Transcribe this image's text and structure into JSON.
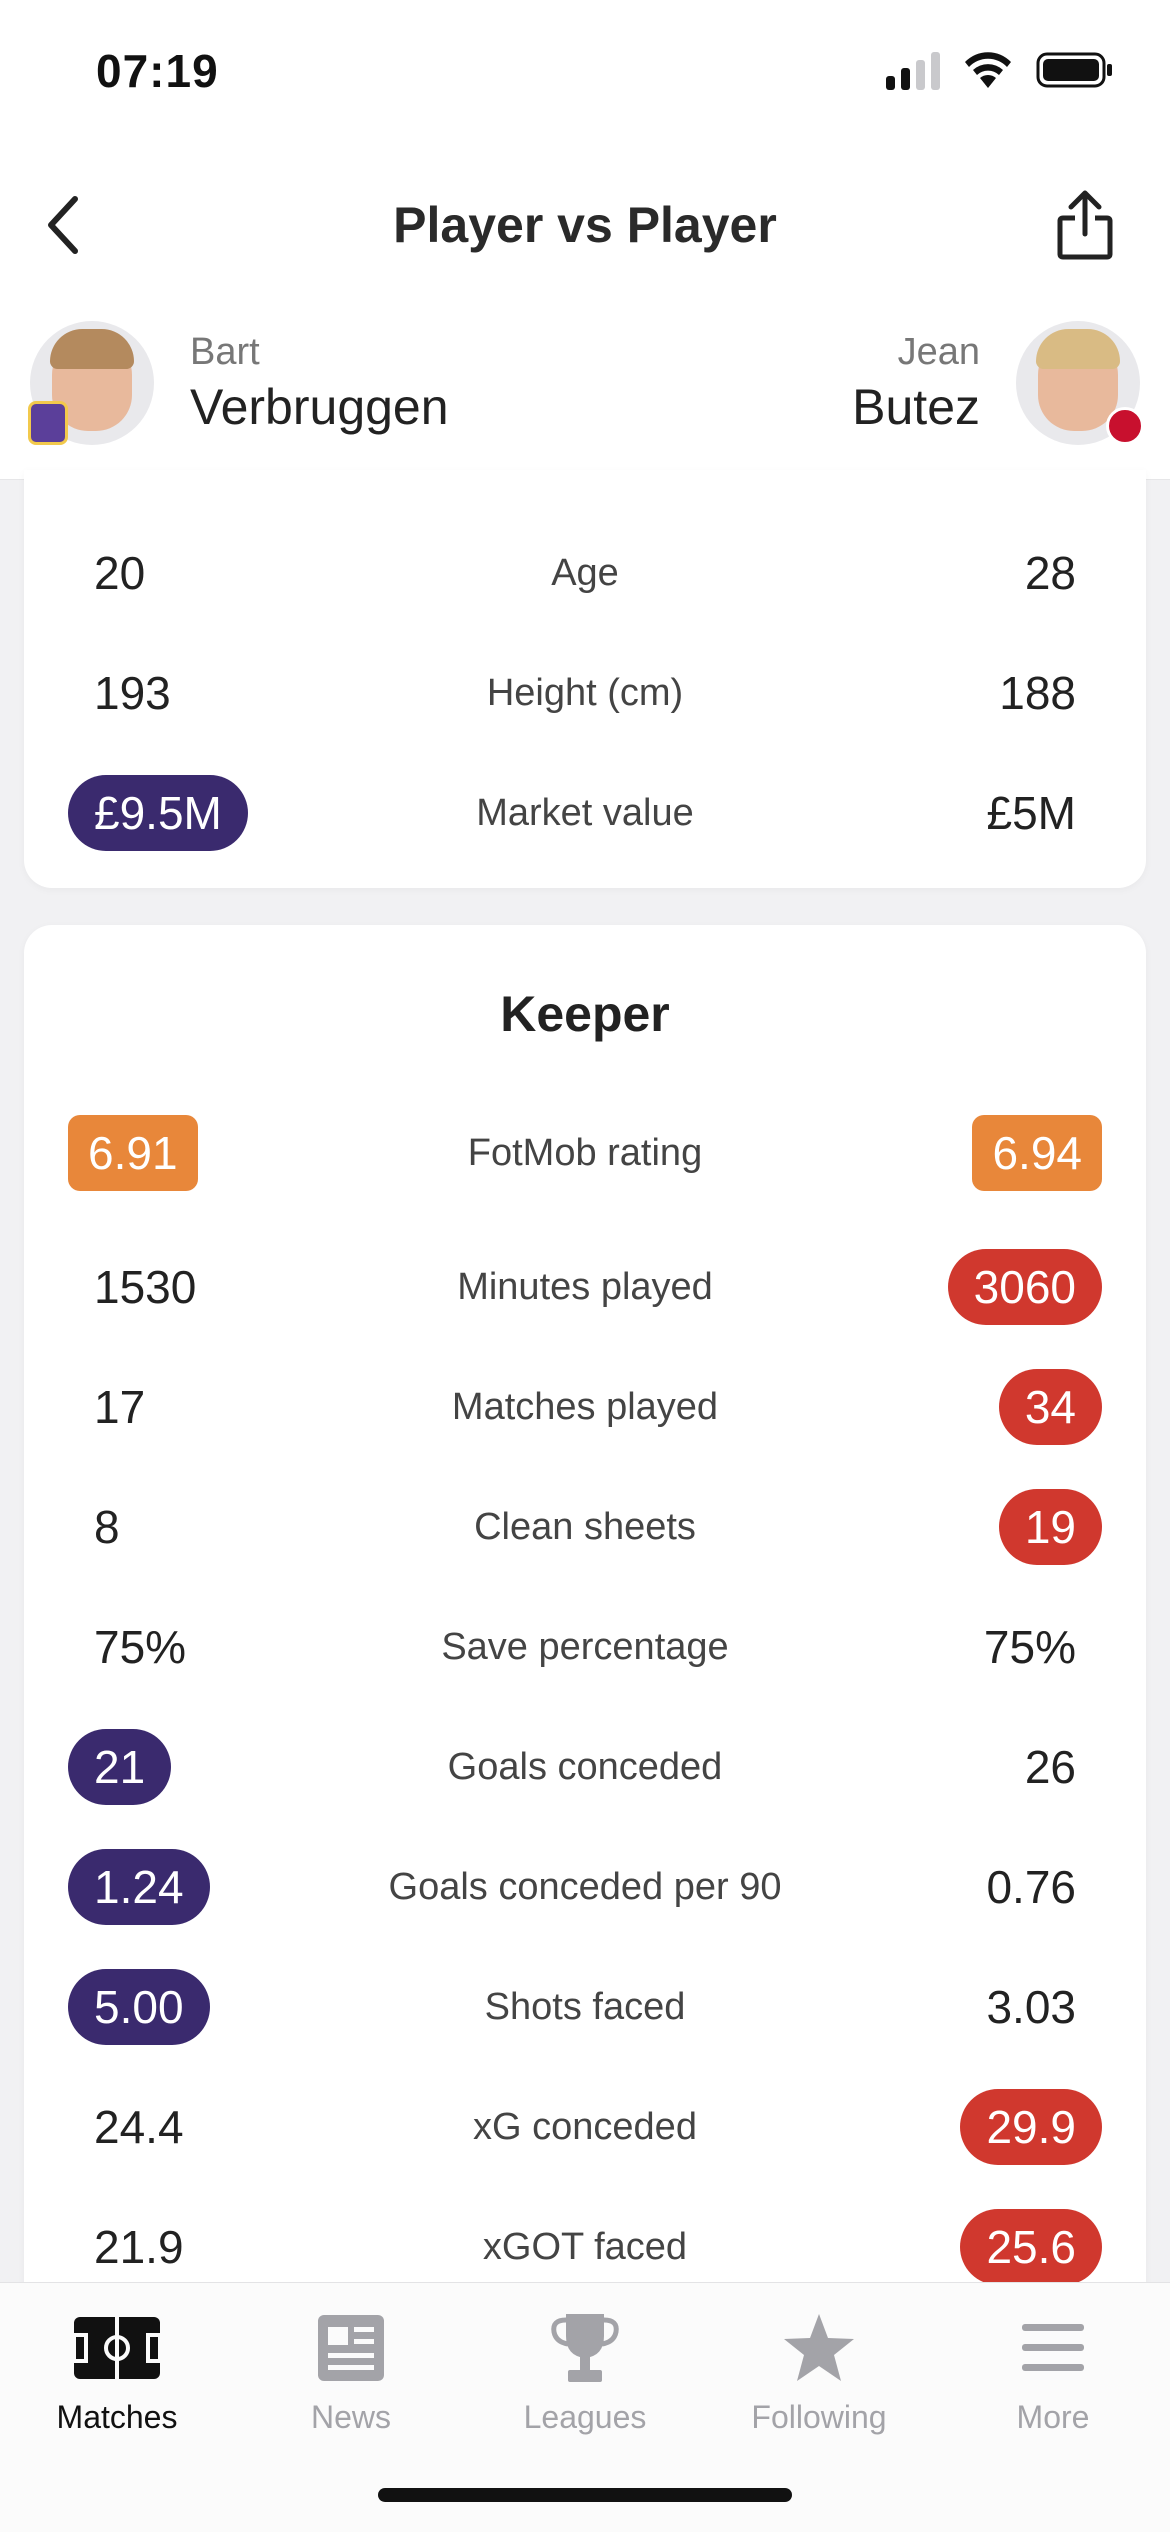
{
  "status_bar": {
    "time": "07:19",
    "signal_icon": "cellular-signal-icon",
    "wifi_icon": "wifi-icon",
    "battery_icon": "battery-icon"
  },
  "header": {
    "title": "Player vs Player",
    "back_icon": "chevron-left-icon",
    "share_icon": "share-icon"
  },
  "players": {
    "left": {
      "first_name": "Bart",
      "last_name": "Verbruggen",
      "club_color": "#5b3f9a"
    },
    "right": {
      "first_name": "Jean",
      "last_name": "Butez",
      "club_color": "#c8102e"
    }
  },
  "colors": {
    "purple": "#3a2a6e",
    "orange": "#e8873a",
    "red": "#d0382e"
  },
  "bio_stats": [
    {
      "label": "Age",
      "left": "20",
      "right": "28",
      "highlight": "none"
    },
    {
      "label": "Height (cm)",
      "left": "193",
      "right": "188",
      "highlight": "none"
    },
    {
      "label": "Market value",
      "left": "£9.5M",
      "right": "£5M",
      "highlight": "left-purple"
    }
  ],
  "keeper": {
    "title": "Keeper",
    "stats": [
      {
        "label": "FotMob rating",
        "left": "6.91",
        "right": "6.94",
        "highlight": "both-orange"
      },
      {
        "label": "Minutes played",
        "left": "1530",
        "right": "3060",
        "highlight": "right-red"
      },
      {
        "label": "Matches played",
        "left": "17",
        "right": "34",
        "highlight": "right-red"
      },
      {
        "label": "Clean sheets",
        "left": "8",
        "right": "19",
        "highlight": "right-red"
      },
      {
        "label": "Save percentage",
        "left": "75%",
        "right": "75%",
        "highlight": "none"
      },
      {
        "label": "Goals conceded",
        "left": "21",
        "right": "26",
        "highlight": "left-purple"
      },
      {
        "label": "Goals conceded per 90",
        "left": "1.24",
        "right": "0.76",
        "highlight": "left-purple"
      },
      {
        "label": "Shots faced",
        "left": "5.00",
        "right": "3.03",
        "highlight": "left-purple"
      },
      {
        "label": "xG conceded",
        "left": "24.4",
        "right": "29.9",
        "highlight": "right-red"
      },
      {
        "label": "xGOT faced",
        "left": "21.9",
        "right": "25.6",
        "highlight": "right-red"
      }
    ]
  },
  "nav": {
    "items": [
      {
        "label": "Matches",
        "icon": "pitch-icon",
        "active": true
      },
      {
        "label": "News",
        "icon": "newspaper-icon",
        "active": false
      },
      {
        "label": "Leagues",
        "icon": "trophy-icon",
        "active": false
      },
      {
        "label": "Following",
        "icon": "star-icon",
        "active": false
      },
      {
        "label": "More",
        "icon": "menu-icon",
        "active": false
      }
    ]
  }
}
